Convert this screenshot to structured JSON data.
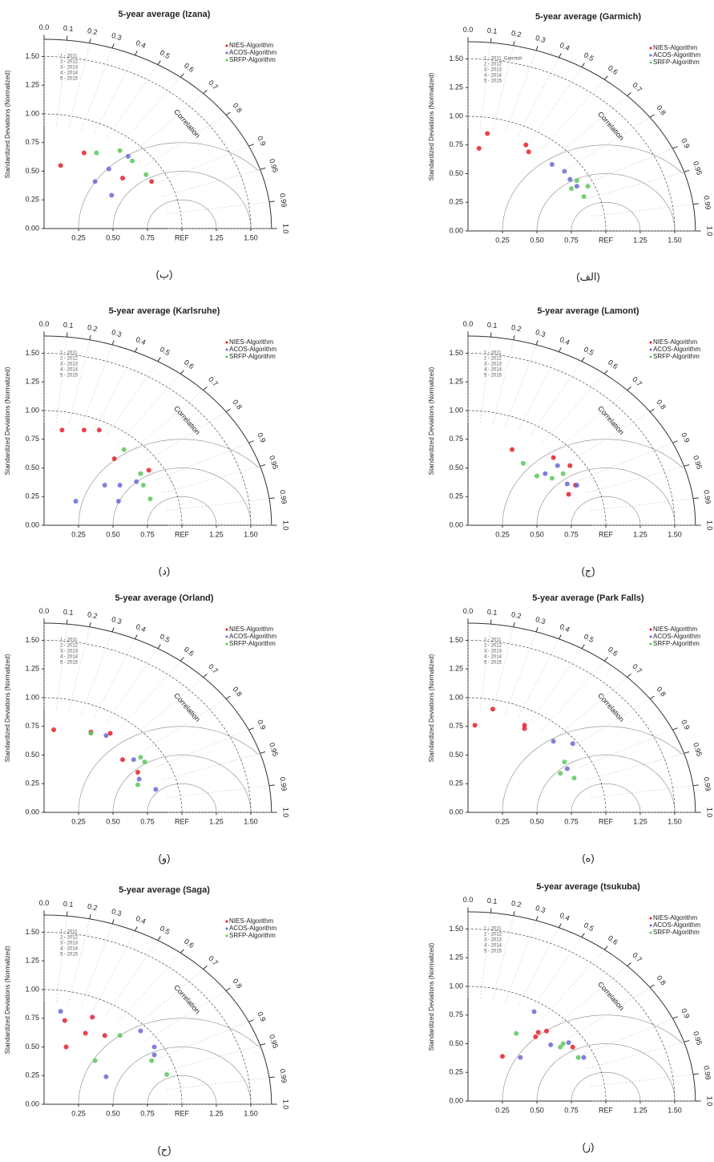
{
  "taylor_axes": {
    "xlim": [
      0,
      1.65
    ],
    "ylim": [
      0,
      1.65
    ],
    "xticks": [
      0.25,
      {
        "value": 0.5,
        "label": "0.50"
      },
      0.75,
      {
        "value": 1,
        "label": "REF"
      },
      1.25,
      {
        "value": 1.5,
        "label": "1.50"
      }
    ],
    "yticks": [
      {
        "value": 0,
        "label": "0.00"
      },
      0.25,
      {
        "value": 0.5,
        "label": "0.50"
      },
      0.75,
      {
        "value": 1,
        "label": "1.00"
      },
      1.25,
      {
        "value": 1.5,
        "label": "1.50"
      }
    ],
    "corr_ticks": [
      {
        "value": 0,
        "label": "0.0"
      },
      0.1,
      0.2,
      0.3,
      0.4,
      0.5,
      0.6,
      0.7,
      0.8,
      0.9,
      0.95,
      0.99,
      {
        "value": 1,
        "label": "1.0"
      }
    ],
    "corr_label": "Correlation",
    "y_label": "Standardized Deviations (Normalized)"
  },
  "chart_data": [
    {
      "type": "taylor",
      "title": "5-year average (Izana)",
      "caption": "(ب)",
      "year_legend": [
        "1 - 2011",
        "2 - 2012",
        "3 - 2013",
        "4 - 2014",
        "5 - 2015"
      ],
      "series": [
        {
          "name": "NIES-Algorithm",
          "color": "#e8202a",
          "x": [
            0.12,
            0.29,
            0.57,
            0.78
          ],
          "y": [
            0.55,
            0.66,
            0.44,
            0.41
          ]
        },
        {
          "name": "ACOS-Algorithm",
          "color": "#6a6ad8",
          "x": [
            0.37,
            0.47,
            0.61,
            0.49
          ],
          "y": [
            0.41,
            0.52,
            0.63,
            0.29
          ]
        },
        {
          "name": "SRFP-Algorithm",
          "color": "#5cc85c",
          "x": [
            0.38,
            0.55,
            0.64,
            0.74
          ],
          "y": [
            0.66,
            0.68,
            0.59,
            0.47
          ]
        }
      ]
    },
    {
      "type": "taylor",
      "title": "5-year average (Garmich)",
      "caption": "(الف)",
      "year_legend": [
        "1 - 2011_Garmish",
        "2 - 2012",
        "3 - 2013",
        "4 - 2014",
        "5 - 2015"
      ],
      "series": [
        {
          "name": "NIES-Algorithm",
          "color": "#e8202a",
          "x": [
            0.08,
            0.14,
            0.42,
            0.44
          ],
          "y": [
            0.72,
            0.85,
            0.75,
            0.69
          ]
        },
        {
          "name": "ACOS-Algorithm",
          "color": "#6a6ad8",
          "x": [
            0.61,
            0.7,
            0.74,
            0.79
          ],
          "y": [
            0.58,
            0.52,
            0.45,
            0.39
          ]
        },
        {
          "name": "SRFP-Algorithm",
          "color": "#5cc85c",
          "x": [
            0.75,
            0.79,
            0.84,
            0.87
          ],
          "y": [
            0.37,
            0.44,
            0.3,
            0.39
          ]
        }
      ]
    },
    {
      "type": "taylor",
      "title": "5-year average (Karlsruhe)",
      "caption": "(د)",
      "year_legend": [
        "1 - 2011",
        "2 - 2012",
        "3 - 2013",
        "4 - 2014",
        "5 - 2015"
      ],
      "series": [
        {
          "name": "NIES-Algorithm",
          "color": "#e8202a",
          "x": [
            0.13,
            0.29,
            0.4,
            0.51,
            0.76
          ],
          "y": [
            0.83,
            0.83,
            0.83,
            0.58,
            0.48
          ]
        },
        {
          "name": "ACOS-Algorithm",
          "color": "#6a6ad8",
          "x": [
            0.23,
            0.44,
            0.55,
            0.67,
            0.54
          ],
          "y": [
            0.21,
            0.35,
            0.35,
            0.38,
            0.21
          ]
        },
        {
          "name": "SRFP-Algorithm",
          "color": "#5cc85c",
          "x": [
            0.58,
            0.72,
            0.77,
            0.7
          ],
          "y": [
            0.66,
            0.35,
            0.23,
            0.45
          ]
        }
      ]
    },
    {
      "type": "taylor",
      "title": "5-year average (Lamont)",
      "caption": "(ج)",
      "year_legend": [
        "1 - 2011",
        "2 - 2012",
        "3 - 2013",
        "4 - 2014",
        "5 - 2015"
      ],
      "series": [
        {
          "name": "NIES-Algorithm",
          "color": "#e8202a",
          "x": [
            0.32,
            0.62,
            0.74,
            0.78,
            0.73
          ],
          "y": [
            0.66,
            0.59,
            0.52,
            0.35,
            0.27
          ]
        },
        {
          "name": "ACOS-Algorithm",
          "color": "#6a6ad8",
          "x": [
            0.65,
            0.72,
            0.79,
            0.56
          ],
          "y": [
            0.52,
            0.36,
            0.35,
            0.45
          ]
        },
        {
          "name": "SRFP-Algorithm",
          "color": "#5cc85c",
          "x": [
            0.4,
            0.5,
            0.61,
            0.69
          ],
          "y": [
            0.54,
            0.43,
            0.41,
            0.45
          ]
        }
      ]
    },
    {
      "type": "taylor",
      "title": "5-year average (Orland)",
      "caption": "(و)",
      "year_legend": [
        "1 - 2011",
        "2 - 2012",
        "3 - 2013",
        "4 - 2014",
        "5 - 2015"
      ],
      "series": [
        {
          "name": "NIES-Algorithm",
          "color": "#e8202a",
          "x": [
            0.07,
            0.34,
            0.48,
            0.57,
            0.68
          ],
          "y": [
            0.72,
            0.7,
            0.69,
            0.46,
            0.35
          ]
        },
        {
          "name": "ACOS-Algorithm",
          "color": "#6a6ad8",
          "x": [
            0.45,
            0.65,
            0.81,
            0.69
          ],
          "y": [
            0.67,
            0.46,
            0.2,
            0.29
          ]
        },
        {
          "name": "SRFP-Algorithm",
          "color": "#5cc85c",
          "x": [
            0.34,
            0.7,
            0.68,
            0.73
          ],
          "y": [
            0.69,
            0.48,
            0.24,
            0.44
          ]
        }
      ]
    },
    {
      "type": "taylor",
      "title": "5-year average (Park Falls)",
      "caption": "(ه)",
      "year_legend": [
        "1 - 2011",
        "2 - 2012",
        "3 - 2013",
        "4 - 2014",
        "5 - 2015"
      ],
      "series": [
        {
          "name": "NIES-Algorithm",
          "color": "#e8202a",
          "x": [
            0.05,
            0.18,
            0.41,
            0.41
          ],
          "y": [
            0.76,
            0.9,
            0.73,
            0.76
          ]
        },
        {
          "name": "ACOS-Algorithm",
          "color": "#6a6ad8",
          "x": [
            0.62,
            0.76,
            0.72
          ],
          "y": [
            0.62,
            0.6,
            0.38
          ]
        },
        {
          "name": "SRFP-Algorithm",
          "color": "#5cc85c",
          "x": [
            0.67,
            0.77,
            0.7
          ],
          "y": [
            0.34,
            0.3,
            0.44
          ]
        }
      ]
    },
    {
      "type": "taylor",
      "title": "5-year average (Saga)",
      "caption": "(ح)",
      "year_legend": [
        "1 - 2011",
        "2 - 2012",
        "3 - 2013",
        "4 - 2014",
        "5 - 2015"
      ],
      "series": [
        {
          "name": "NIES-Algorithm",
          "color": "#e8202a",
          "x": [
            0.15,
            0.16,
            0.3,
            0.35,
            0.44
          ],
          "y": [
            0.73,
            0.5,
            0.62,
            0.76,
            0.6
          ]
        },
        {
          "name": "ACOS-Algorithm",
          "color": "#6a6ad8",
          "x": [
            0.12,
            0.45,
            0.7,
            0.8,
            0.8
          ],
          "y": [
            0.81,
            0.24,
            0.64,
            0.5,
            0.43
          ]
        },
        {
          "name": "SRFP-Algorithm",
          "color": "#5cc85c",
          "x": [
            0.37,
            0.55,
            0.78,
            0.89
          ],
          "y": [
            0.38,
            0.6,
            0.38,
            0.26
          ]
        }
      ]
    },
    {
      "type": "taylor",
      "title": "5-year average (tsukuba)",
      "caption": "(ز)",
      "year_legend": [
        "1 - 2011",
        "2 - 2012",
        "3 - 2013",
        "4 - 2014",
        "5 - 2015"
      ],
      "series": [
        {
          "name": "NIES-Algorithm",
          "color": "#e8202a",
          "x": [
            0.25,
            0.49,
            0.51,
            0.57,
            0.76
          ],
          "y": [
            0.39,
            0.56,
            0.6,
            0.61,
            0.47
          ]
        },
        {
          "name": "ACOS-Algorithm",
          "color": "#6a6ad8",
          "x": [
            0.48,
            0.6,
            0.73,
            0.84,
            0.38
          ],
          "y": [
            0.78,
            0.49,
            0.51,
            0.38,
            0.38
          ]
        },
        {
          "name": "SRFP-Algorithm",
          "color": "#5cc85c",
          "x": [
            0.35,
            0.69,
            0.8,
            0.67
          ],
          "y": [
            0.59,
            0.5,
            0.38,
            0.47
          ]
        }
      ]
    }
  ]
}
